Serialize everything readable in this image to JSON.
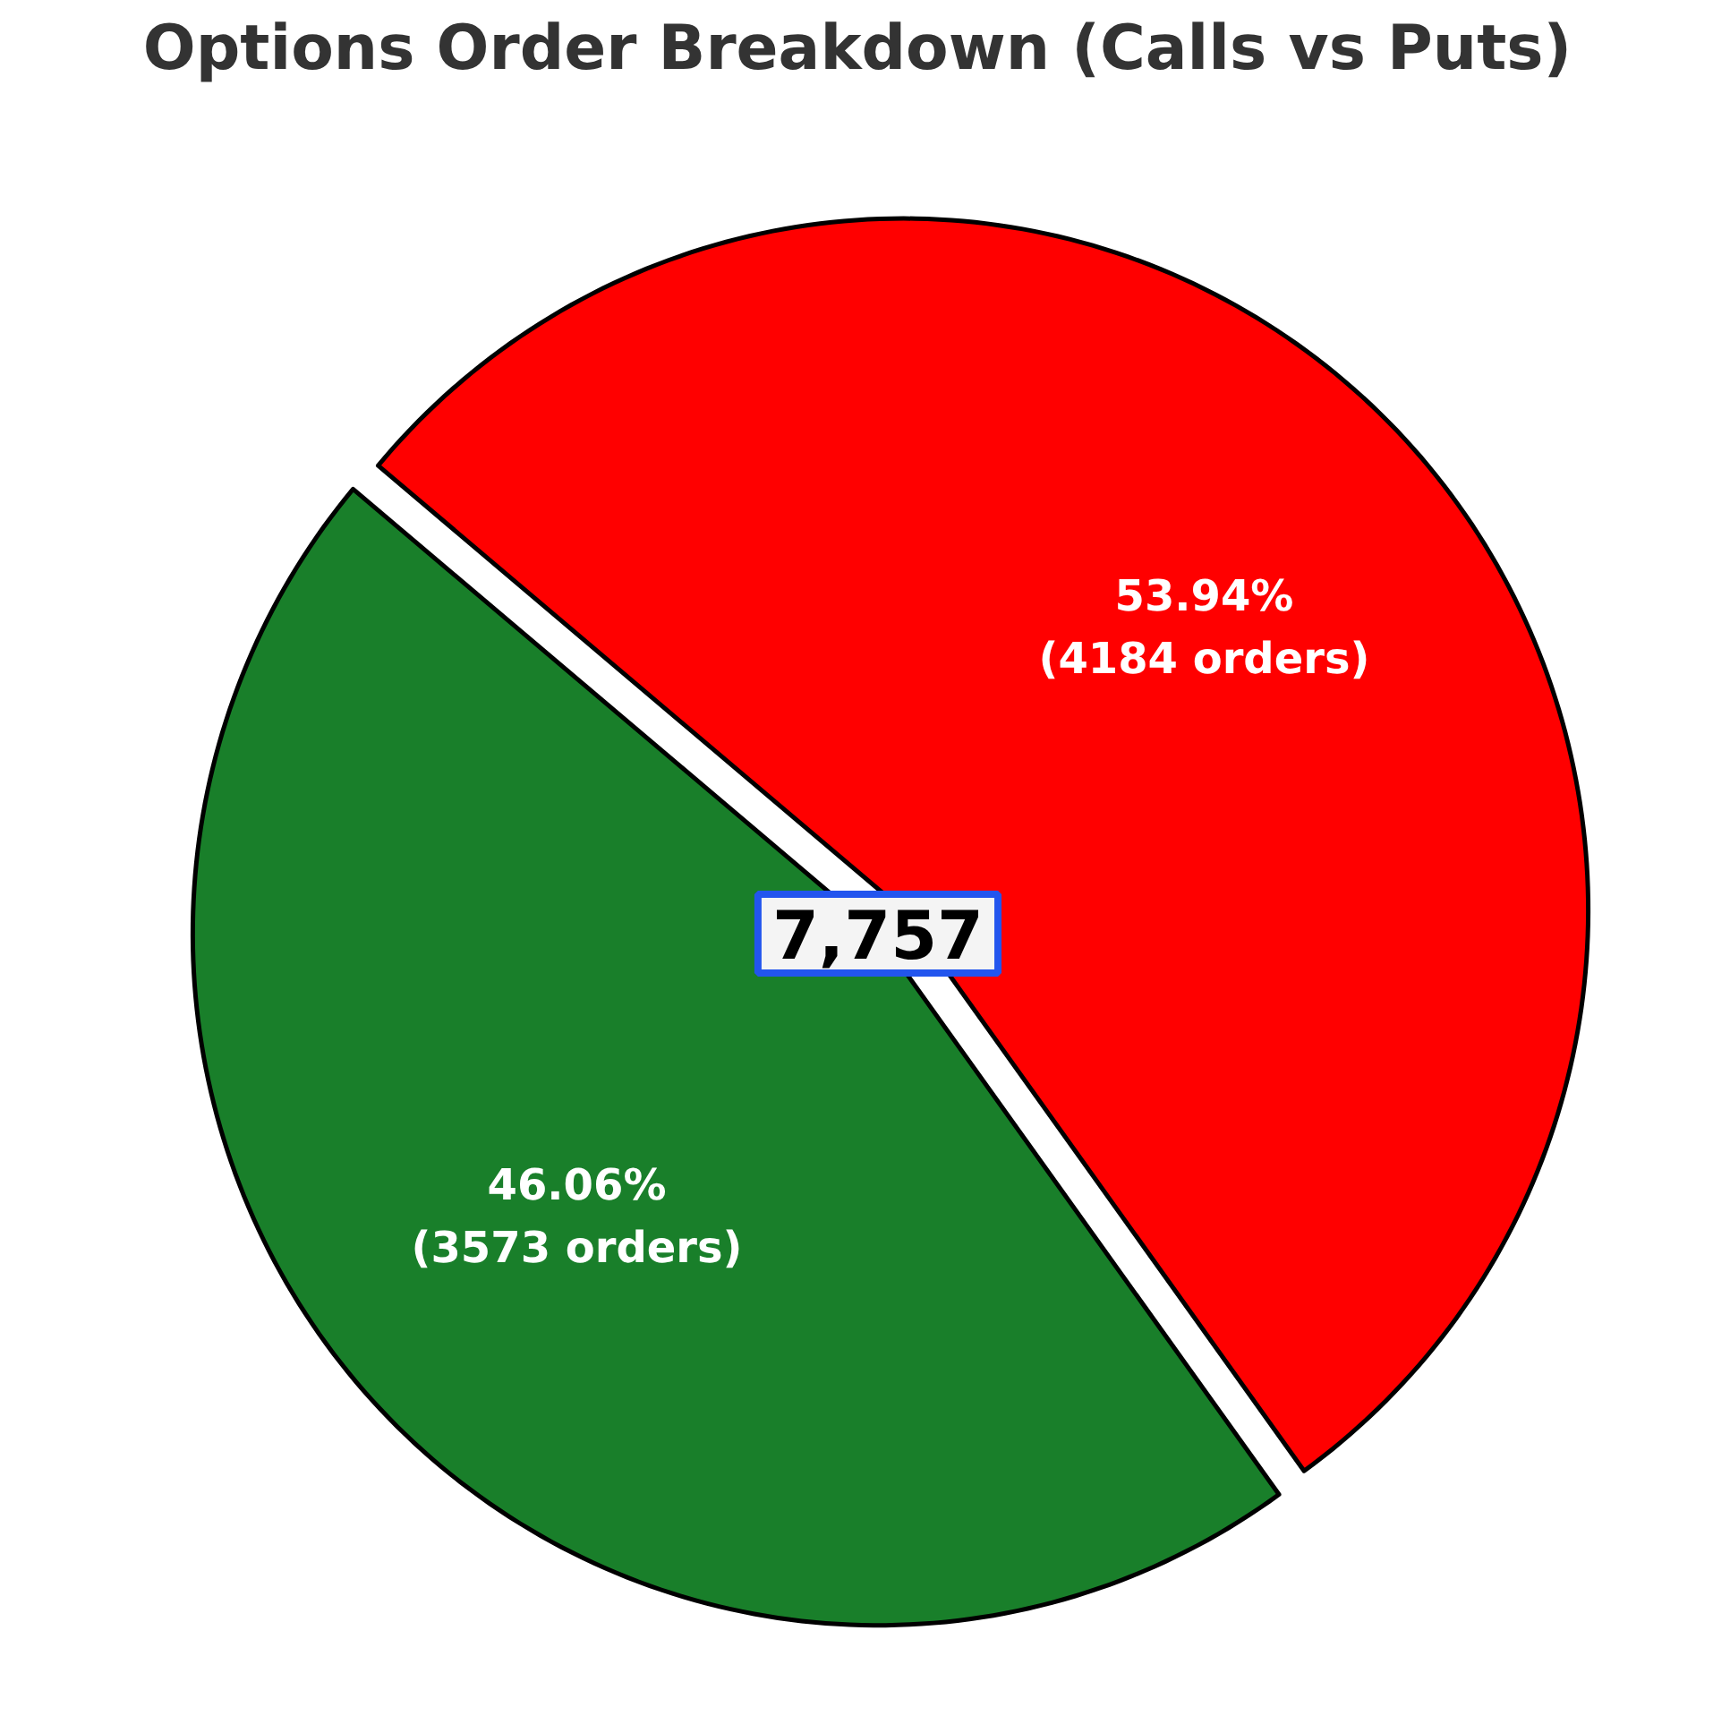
{
  "chart_data": {
    "type": "pie",
    "title": "Options Order Breakdown (Calls vs Puts)",
    "categories": [
      null,
      null
    ],
    "values": [
      3573,
      4184
    ],
    "colors": [
      "#197f2a",
      "#ff0000"
    ],
    "value_labels": [
      "46.06%\n(3573 orders)",
      "53.94%\n(4184 orders)"
    ],
    "annotations": [
      "7,757"
    ]
  }
}
